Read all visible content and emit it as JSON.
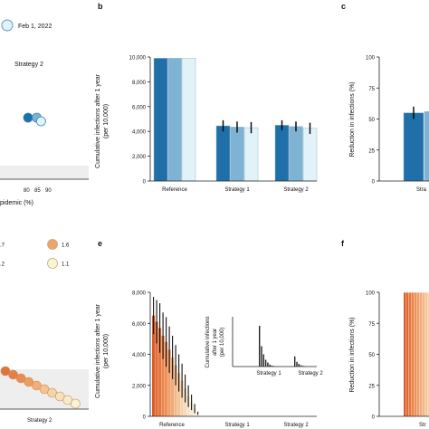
{
  "colors": {
    "blue_dark": "#1f6fa8",
    "blue_mid": "#7fb3d3",
    "blue_light": "#e1f2f8",
    "orange_dark": "#e0743a",
    "orange_mid": "#eea46f",
    "orange_pale": "#f6d9b6",
    "yellow_pale": "#f7f6d2",
    "shade": "#eeeeee",
    "error": "#000000"
  },
  "panel_a": {
    "legend_label": "Feb 1, 2022",
    "strategy_label": "Strategy 2",
    "x_ticks": [
      "80",
      "85",
      "90"
    ],
    "x_label_fragment": "pidemic (%)",
    "dots": [
      {
        "x": 80,
        "color": "blue_dark"
      },
      {
        "x": 84,
        "color": "blue_mid"
      },
      {
        "x": 86,
        "color": "blue_light"
      }
    ]
  },
  "panel_b": {
    "letter": "b",
    "ylabel": "Cumulative infections after 1 year (per 10,000)",
    "ylabel_line1": "Cumulative infections after 1 year",
    "ylabel_line2": "(per 10,000)",
    "y_ticks": [
      "0",
      "2,000",
      "4,000",
      "6,000",
      "8,000",
      "10,000"
    ],
    "categories": [
      "Reference",
      "Strategy 1",
      "Strategy 2"
    ]
  },
  "panel_c": {
    "letter": "c",
    "ylabel": "Reduction in infections (%)",
    "y_ticks": [
      "0",
      "25",
      "50",
      "75",
      "100"
    ],
    "x_fragment": "Stra"
  },
  "panel_d": {
    "legend": [
      {
        "label": ".7",
        "color": "orange_dark"
      },
      {
        "label": "1.6",
        "color": "orange_mid"
      },
      {
        "label": ".2",
        "color": "orange_pale"
      },
      {
        "label": "1.1",
        "color": "yellow_pale"
      }
    ],
    "x_label": "Strategy 2"
  },
  "panel_e": {
    "letter": "e",
    "ylabel_line1": "Cumulative infections after 1 year",
    "ylabel_line2": "(per 10,000)",
    "y_ticks": [
      "0",
      "2,000",
      "4,000",
      "6,000",
      "8,000"
    ],
    "categories": [
      "Reference",
      "Strategy 1",
      "Strategy 2"
    ],
    "inset": {
      "ylabel_line1": "Cumulative infections",
      "ylabel_line2": "after 1 year",
      "ylabel_line3": "(per 10,000)",
      "categories": [
        "Strategy 1",
        "Strategy 2"
      ]
    }
  },
  "panel_f": {
    "letter": "f",
    "ylabel": "Reduction in infections (%)",
    "y_ticks": [
      "0",
      "25",
      "50",
      "75",
      "100"
    ],
    "x_fragment": "Str"
  },
  "chart_data": [
    {
      "type": "bar",
      "panel": "b",
      "ylabel": "Cumulative infections after 1 year (per 10,000)",
      "categories": [
        "Reference",
        "Strategy 1",
        "Strategy 2"
      ],
      "ylim": [
        0,
        10000
      ],
      "series": [
        {
          "color": "blue_dark",
          "values": [
            9900,
            4450,
            4500
          ],
          "error": [
            0,
            450,
            400
          ]
        },
        {
          "color": "blue_mid",
          "values": [
            9900,
            4350,
            4400
          ],
          "error": [
            0,
            450,
            400
          ]
        },
        {
          "color": "blue_light",
          "values": [
            9900,
            4300,
            4250
          ],
          "error": [
            0,
            450,
            450
          ]
        }
      ]
    },
    {
      "type": "bar",
      "panel": "c",
      "ylabel": "Reduction in infections (%)",
      "ylim": [
        0,
        100
      ],
      "series": [
        {
          "color": "blue_dark",
          "values": [
            55
          ],
          "error": [
            5
          ]
        },
        {
          "color": "blue_mid",
          "values": [
            56
          ],
          "error": [
            0
          ]
        }
      ]
    },
    {
      "type": "bar",
      "panel": "e",
      "ylabel": "Cumulative infections after 1 year (per 10,000)",
      "categories": [
        "Reference",
        "Strategy 1",
        "Strategy 2"
      ],
      "ylim": [
        0,
        8000
      ],
      "reference_values": [
        6500,
        6100,
        5700,
        5200,
        4800,
        4300,
        3800,
        3300,
        2800,
        2300,
        1800,
        1300,
        900,
        500,
        200
      ],
      "reference_errors": [
        1200,
        1400,
        1600,
        1500,
        1600,
        1500,
        1400,
        1300,
        1200,
        1100,
        900,
        700,
        500,
        300,
        100
      ]
    },
    {
      "type": "bar",
      "panel": "e-inset",
      "categories": [
        "Strategy 1",
        "Strategy 2"
      ],
      "strategy1": [
        600,
        300,
        180,
        100,
        60,
        30,
        15,
        8
      ],
      "strategy2": [
        150,
        70,
        40,
        20,
        10,
        5
      ]
    },
    {
      "type": "bar",
      "panel": "f",
      "ylabel": "Reduction in infections (%)",
      "ylim": [
        0,
        100
      ],
      "values": [
        99.8,
        99.8,
        99.8,
        99.8,
        99.8,
        99.8,
        99.8,
        99.8,
        99.8,
        99.8
      ]
    }
  ]
}
